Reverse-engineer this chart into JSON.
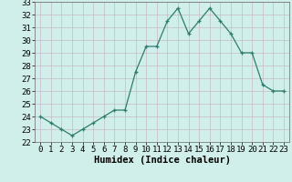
{
  "x": [
    0,
    1,
    2,
    3,
    4,
    5,
    6,
    7,
    8,
    9,
    10,
    11,
    12,
    13,
    14,
    15,
    16,
    17,
    18,
    19,
    20,
    21,
    22,
    23
  ],
  "y": [
    24,
    23.5,
    23,
    22.5,
    23,
    23.5,
    24,
    24.5,
    24.5,
    27.5,
    29.5,
    29.5,
    31.5,
    32.5,
    30.5,
    31.5,
    32.5,
    31.5,
    30.5,
    29,
    29,
    26.5,
    26,
    26
  ],
  "xlabel": "Humidex (Indice chaleur)",
  "ylim": [
    22,
    33
  ],
  "xlim_min": -0.5,
  "xlim_max": 23.5,
  "yticks": [
    22,
    23,
    24,
    25,
    26,
    27,
    28,
    29,
    30,
    31,
    32,
    33
  ],
  "xticks": [
    0,
    1,
    2,
    3,
    4,
    5,
    6,
    7,
    8,
    9,
    10,
    11,
    12,
    13,
    14,
    15,
    16,
    17,
    18,
    19,
    20,
    21,
    22,
    23
  ],
  "line_color": "#2d7d6e",
  "marker": "+",
  "bg_color": "#d0eeea",
  "grid_color": "#c8b8c8",
  "label_fontsize": 7.5,
  "tick_fontsize": 6.5
}
